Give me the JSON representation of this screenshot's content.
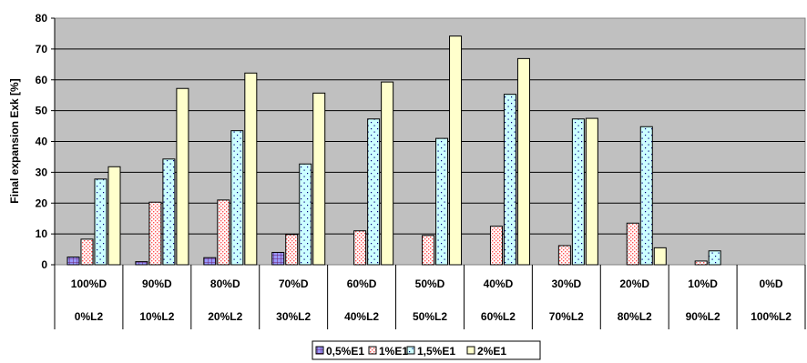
{
  "chart_data": {
    "type": "bar",
    "ylabel": "Final expansion Exk [%]",
    "xlabel": "",
    "ylim": [
      0,
      80
    ],
    "yticks": [
      0,
      10,
      20,
      30,
      40,
      50,
      60,
      70,
      80
    ],
    "grid": true,
    "legend_position": "bottom",
    "categories": [
      [
        "100%D",
        "0%L2"
      ],
      [
        "90%D",
        "10%L2"
      ],
      [
        "80%D",
        "20%L2"
      ],
      [
        "70%D",
        "30%L2"
      ],
      [
        "60%D",
        "40%L2"
      ],
      [
        "50%D",
        "50%L2"
      ],
      [
        "40%D",
        "60%L2"
      ],
      [
        "30%D",
        "70%L2"
      ],
      [
        "20%D",
        "80%L2"
      ],
      [
        "10%D",
        "90%L2"
      ],
      [
        "0%D",
        "100%L2"
      ]
    ],
    "series": [
      {
        "name": "0,5%E1",
        "color": "#9999ff",
        "pattern": "grid",
        "values": [
          2.5,
          1.0,
          2.3,
          4.0,
          0,
          0,
          0,
          0,
          0,
          0,
          0
        ]
      },
      {
        "name": "1%E1",
        "color": "#ffffff",
        "pattern": "pink-dots",
        "values": [
          8.3,
          20.3,
          21.0,
          9.8,
          11.0,
          9.5,
          12.5,
          6.2,
          13.5,
          1.2,
          0
        ]
      },
      {
        "name": "1,5%E1",
        "color": "#ccffff",
        "pattern": "sparse-dots",
        "values": [
          27.8,
          34.3,
          43.5,
          32.7,
          47.3,
          41.0,
          55.3,
          47.3,
          44.8,
          4.5,
          0
        ]
      },
      {
        "name": "2%E1",
        "color": "#ffffcc",
        "pattern": "none",
        "values": [
          31.8,
          57.2,
          62.2,
          55.7,
          59.3,
          74.2,
          66.9,
          47.5,
          5.5,
          0,
          0
        ]
      }
    ]
  }
}
